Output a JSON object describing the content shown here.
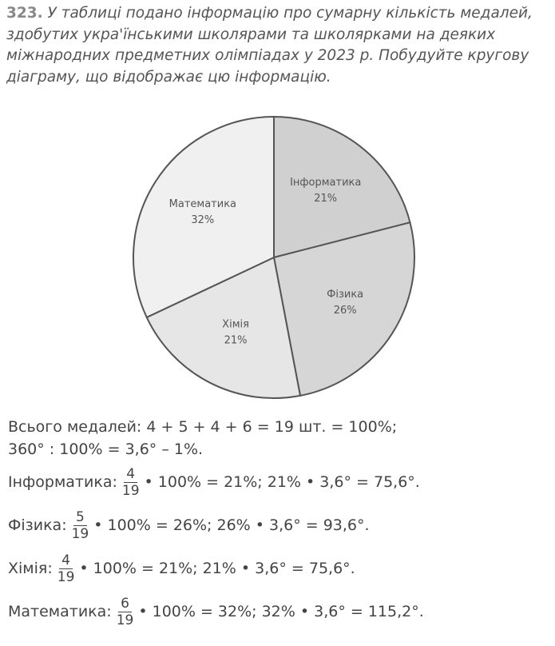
{
  "problem": {
    "number": "323.",
    "lines": [
      "У таблиці подано інформацію про сумарну кількість медалей,",
      "здобутих укра'їнськими школярами та школярками на деяких",
      "міжнародних предметних олімпіадах у 2023 р. Побудуйте кругову",
      "діаграму, що відображає цю інформацію."
    ]
  },
  "chart_data": {
    "type": "pie",
    "categories": [
      "Інформатика",
      "Фізика",
      "Хімія",
      "Математика"
    ],
    "values": [
      21,
      26,
      21,
      32
    ],
    "value_labels": [
      "21%",
      "26%",
      "21%",
      "32%"
    ],
    "colors": [
      "#d0d0d0",
      "#d6d6d6",
      "#e6e6e6",
      "#f0f0f0"
    ]
  },
  "solution": {
    "lines": [
      "Всього медалей: 4 + 5 + 4 + 6 = 19 шт. = 100%;",
      "360° : 100% = 3,6° – 1%."
    ],
    "fractions": [
      {
        "label": "Інформатика:",
        "numerator": "4",
        "denominator": "19",
        "rest": "• 100% = 21%; 21% • 3,6° = 75,6°."
      },
      {
        "label": "Фізика:",
        "numerator": "5",
        "denominator": "19",
        "rest": "• 100% = 26%; 26% • 3,6° = 93,6°."
      },
      {
        "label": "Хімія:",
        "numerator": "4",
        "denominator": "19",
        "rest": "• 100% = 21%; 21% • 3,6° = 75,6°."
      },
      {
        "label": "Математика:",
        "numerator": "6",
        "denominator": "19",
        "rest": "• 100% = 32%; 32% • 3,6° = 115,2°."
      }
    ]
  }
}
